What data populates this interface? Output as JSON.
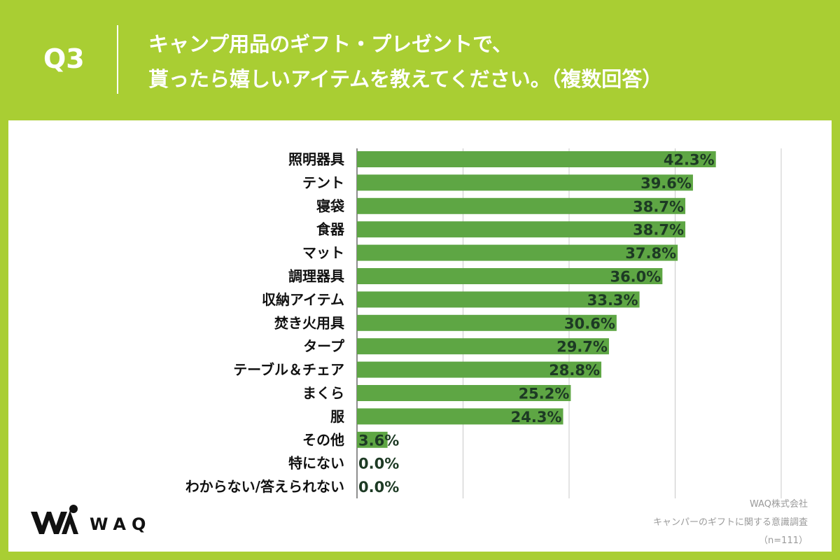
{
  "header": {
    "question_number": "Q3",
    "title_line1": "キャンプ用品のギフト・プレゼントで、",
    "title_line2": "貰ったら嬉しいアイテムを教えてください。（複数回答）"
  },
  "brand": {
    "logo_text": "WAQ"
  },
  "credit": {
    "company": "WAQ株式会社",
    "survey": "キャンパーのギフトに関する意識調査",
    "sample": "（n=111）"
  },
  "colors": {
    "background": "#a9ce33",
    "bar": "#5ea644",
    "value_text": "#1d3a24",
    "grid": "#c8c8c8"
  },
  "chart_data": {
    "type": "bar",
    "orientation": "horizontal",
    "categories": [
      "照明器具",
      "テント",
      "寝袋",
      "食器",
      "マット",
      "調理器具",
      "収納アイテム",
      "焚き火用具",
      "タープ",
      "テーブル＆チェア",
      "まくら",
      "服",
      "その他",
      "特にない",
      "わからない/答えられない"
    ],
    "values": [
      42.3,
      39.6,
      38.7,
      38.7,
      37.8,
      36.0,
      33.3,
      30.6,
      29.7,
      28.8,
      25.2,
      24.3,
      3.6,
      0.0,
      0.0
    ],
    "value_labels": [
      "42.3%",
      "39.6%",
      "38.7%",
      "38.7%",
      "37.8%",
      "36.0%",
      "33.3%",
      "30.6%",
      "29.7%",
      "28.8%",
      "25.2%",
      "24.3%",
      "3.6%",
      "0.0%",
      "0.0%"
    ],
    "xlim": [
      0,
      50
    ],
    "gridlines": [
      0,
      12.5,
      25,
      37.5,
      50
    ],
    "title": "",
    "xlabel": "",
    "ylabel": ""
  }
}
